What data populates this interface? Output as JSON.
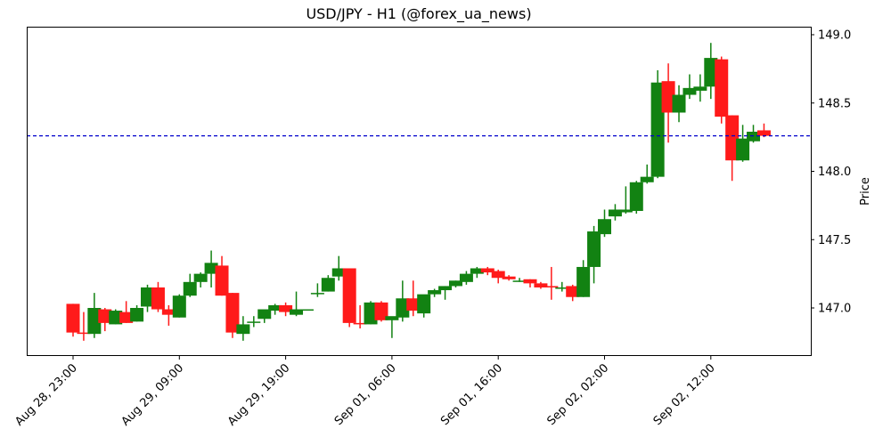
{
  "title": "USD/JPY - H1 (@forex_ua_news)",
  "colors": {
    "up": "#128212",
    "down": "#ff1a1a",
    "reference_line": "#0000cc",
    "axis": "#000000"
  },
  "chart_data": {
    "type": "candlestick",
    "title": "USD/JPY - H1 (@forex_ua_news)",
    "xlabel": "",
    "ylabel": "Price",
    "ylim": [
      146.65,
      149.07
    ],
    "y_ticks": [
      147.0,
      147.5,
      148.0,
      148.5,
      149.0
    ],
    "y_tick_labels": [
      "147.0",
      "147.5",
      "148.0",
      "148.5",
      "149.0"
    ],
    "y_axis_position": "right",
    "grid": false,
    "legend": null,
    "x_tick_labels": [
      "Aug 28, 23:00",
      "Aug 29, 09:00",
      "Aug 29, 19:00",
      "Sep 01, 06:00",
      "Sep 01, 16:00",
      "Sep 02, 02:00",
      "Sep 02, 12:00"
    ],
    "x_tick_indices": [
      0,
      10,
      20,
      30,
      40,
      50,
      60
    ],
    "reference_line": {
      "value": 148.26,
      "style": "dashed",
      "color": "#0000cc"
    },
    "candles": [
      {
        "o": 147.03,
        "h": 147.03,
        "l": 146.79,
        "c": 146.82
      },
      {
        "o": 146.82,
        "h": 146.97,
        "l": 146.76,
        "c": 146.81
      },
      {
        "o": 146.81,
        "h": 147.11,
        "l": 146.78,
        "c": 147.0
      },
      {
        "o": 146.99,
        "h": 147.0,
        "l": 146.83,
        "c": 146.89
      },
      {
        "o": 146.88,
        "h": 146.99,
        "l": 146.88,
        "c": 146.98
      },
      {
        "o": 146.97,
        "h": 147.05,
        "l": 146.89,
        "c": 146.89
      },
      {
        "o": 146.9,
        "h": 147.02,
        "l": 146.9,
        "c": 147.0
      },
      {
        "o": 147.01,
        "h": 147.17,
        "l": 146.97,
        "c": 147.15
      },
      {
        "o": 147.15,
        "h": 147.19,
        "l": 146.97,
        "c": 146.99
      },
      {
        "o": 146.99,
        "h": 147.02,
        "l": 146.87,
        "c": 146.95
      },
      {
        "o": 146.93,
        "h": 147.1,
        "l": 146.93,
        "c": 147.09
      },
      {
        "o": 147.09,
        "h": 147.25,
        "l": 147.08,
        "c": 147.19
      },
      {
        "o": 147.19,
        "h": 147.26,
        "l": 147.15,
        "c": 147.25
      },
      {
        "o": 147.25,
        "h": 147.42,
        "l": 147.15,
        "c": 147.33
      },
      {
        "o": 147.31,
        "h": 147.38,
        "l": 147.09,
        "c": 147.09
      },
      {
        "o": 147.11,
        "h": 147.11,
        "l": 146.78,
        "c": 146.82
      },
      {
        "o": 146.81,
        "h": 146.94,
        "l": 146.76,
        "c": 146.88
      },
      {
        "o": 146.9,
        "h": 146.94,
        "l": 146.86,
        "c": 146.9
      },
      {
        "o": 146.92,
        "h": 146.97,
        "l": 146.89,
        "c": 146.99
      },
      {
        "o": 146.98,
        "h": 147.03,
        "l": 146.95,
        "c": 147.02
      },
      {
        "o": 147.02,
        "h": 147.04,
        "l": 146.94,
        "c": 146.97
      },
      {
        "o": 146.95,
        "h": 147.12,
        "l": 146.94,
        "c": 146.99
      },
      {
        "o": 146.99,
        "h": 146.99,
        "l": 146.99,
        "c": 146.99
      },
      {
        "o": 147.11,
        "h": 147.18,
        "l": 147.08,
        "c": 147.11
      },
      {
        "o": 147.12,
        "h": 147.24,
        "l": 147.12,
        "c": 147.22
      },
      {
        "o": 147.23,
        "h": 147.38,
        "l": 147.2,
        "c": 147.29
      },
      {
        "o": 147.29,
        "h": 147.29,
        "l": 146.86,
        "c": 146.89
      },
      {
        "o": 146.89,
        "h": 147.02,
        "l": 146.85,
        "c": 146.88
      },
      {
        "o": 146.88,
        "h": 147.05,
        "l": 146.88,
        "c": 147.04
      },
      {
        "o": 147.04,
        "h": 147.05,
        "l": 146.9,
        "c": 146.91
      },
      {
        "o": 146.91,
        "h": 146.93,
        "l": 146.78,
        "c": 146.94
      },
      {
        "o": 146.93,
        "h": 147.2,
        "l": 146.9,
        "c": 147.07
      },
      {
        "o": 147.07,
        "h": 147.2,
        "l": 146.94,
        "c": 146.98
      },
      {
        "o": 146.96,
        "h": 147.09,
        "l": 146.93,
        "c": 147.1
      },
      {
        "o": 147.1,
        "h": 147.14,
        "l": 147.08,
        "c": 147.13
      },
      {
        "o": 147.13,
        "h": 147.16,
        "l": 147.06,
        "c": 147.16
      },
      {
        "o": 147.16,
        "h": 147.2,
        "l": 147.15,
        "c": 147.2
      },
      {
        "o": 147.19,
        "h": 147.27,
        "l": 147.17,
        "c": 147.25
      },
      {
        "o": 147.25,
        "h": 147.3,
        "l": 147.22,
        "c": 147.29
      },
      {
        "o": 147.29,
        "h": 147.3,
        "l": 147.24,
        "c": 147.26
      },
      {
        "o": 147.27,
        "h": 147.28,
        "l": 147.18,
        "c": 147.22
      },
      {
        "o": 147.23,
        "h": 147.24,
        "l": 147.2,
        "c": 147.21
      },
      {
        "o": 147.2,
        "h": 147.22,
        "l": 147.19,
        "c": 147.2
      },
      {
        "o": 147.21,
        "h": 147.21,
        "l": 147.15,
        "c": 147.18
      },
      {
        "o": 147.18,
        "h": 147.19,
        "l": 147.14,
        "c": 147.15
      },
      {
        "o": 147.16,
        "h": 147.3,
        "l": 147.06,
        "c": 147.15
      },
      {
        "o": 147.14,
        "h": 147.19,
        "l": 147.12,
        "c": 147.15
      },
      {
        "o": 147.16,
        "h": 147.17,
        "l": 147.05,
        "c": 147.08
      },
      {
        "o": 147.08,
        "h": 147.35,
        "l": 147.08,
        "c": 147.3
      },
      {
        "o": 147.3,
        "h": 147.6,
        "l": 147.18,
        "c": 147.56
      },
      {
        "o": 147.54,
        "h": 147.72,
        "l": 147.52,
        "c": 147.65
      },
      {
        "o": 147.67,
        "h": 147.76,
        "l": 147.64,
        "c": 147.72
      },
      {
        "o": 147.7,
        "h": 147.89,
        "l": 147.69,
        "c": 147.72
      },
      {
        "o": 147.71,
        "h": 147.93,
        "l": 147.69,
        "c": 147.92
      },
      {
        "o": 147.92,
        "h": 148.05,
        "l": 147.91,
        "c": 147.96
      },
      {
        "o": 147.96,
        "h": 148.74,
        "l": 147.95,
        "c": 148.65
      },
      {
        "o": 148.66,
        "h": 148.79,
        "l": 148.21,
        "c": 148.43
      },
      {
        "o": 148.43,
        "h": 148.63,
        "l": 148.36,
        "c": 148.56
      },
      {
        "o": 148.56,
        "h": 148.71,
        "l": 148.53,
        "c": 148.61
      },
      {
        "o": 148.59,
        "h": 148.71,
        "l": 148.51,
        "c": 148.62
      },
      {
        "o": 148.62,
        "h": 148.94,
        "l": 148.53,
        "c": 148.83
      },
      {
        "o": 148.82,
        "h": 148.84,
        "l": 148.35,
        "c": 148.4
      },
      {
        "o": 148.41,
        "h": 148.41,
        "l": 147.93,
        "c": 148.08
      },
      {
        "o": 148.08,
        "h": 148.34,
        "l": 148.07,
        "c": 148.24
      },
      {
        "o": 148.22,
        "h": 148.34,
        "l": 148.21,
        "c": 148.29
      },
      {
        "o": 148.3,
        "h": 148.35,
        "l": 148.25,
        "c": 148.26
      }
    ]
  }
}
